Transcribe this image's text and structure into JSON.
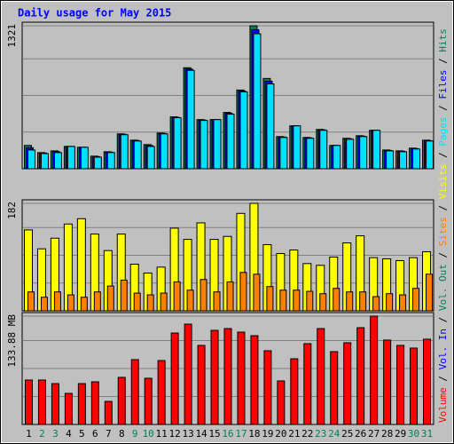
{
  "chart_data": [
    {
      "type": "bar",
      "title": "Daily usage for May 2015",
      "ylim": [
        0,
        1321
      ],
      "yticks": [
        1321
      ],
      "series": [
        {
          "name": "Hits",
          "color": "#00805c",
          "values": [
            215,
            149,
            165,
            206,
            198,
            116,
            157,
            322,
            264,
            223,
            330,
            479,
            933,
            454,
            454,
            520,
            727,
            1321,
            834,
            297,
            396,
            289,
            363,
            215,
            281,
            305,
            355,
            173,
            165,
            190,
            264
          ]
        },
        {
          "name": "Files",
          "color": "#0000ff",
          "values": [
            194,
            145,
            157,
            206,
            198,
            112,
            153,
            318,
            260,
            215,
            326,
            475,
            921,
            450,
            454,
            512,
            719,
            1284,
            809,
            293,
            396,
            285,
            359,
            215,
            277,
            301,
            355,
            169,
            161,
            186,
            260
          ]
        },
        {
          "name": "Pages",
          "color": "#00e0ff",
          "values": [
            173,
            140,
            149,
            206,
            198,
            107,
            149,
            314,
            256,
            206,
            322,
            471,
            909,
            446,
            454,
            504,
            710,
            1247,
            784,
            289,
            396,
            281,
            355,
            215,
            272,
            297,
            355,
            165,
            157,
            182,
            256
          ]
        }
      ]
    },
    {
      "type": "bar",
      "ylim": [
        0,
        182
      ],
      "yticks": [
        182
      ],
      "series": [
        {
          "name": "Visits",
          "color": "#ffff00",
          "values": [
            137,
            105,
            123,
            147,
            156,
            130,
            102,
            130,
            79,
            64,
            74,
            140,
            121,
            149,
            121,
            126,
            165,
            182,
            112,
            97,
            103,
            80,
            77,
            91,
            115,
            127,
            90,
            88,
            85,
            90,
            100
          ]
        },
        {
          "name": "Sites",
          "color": "#ff8000",
          "values": [
            32,
            23,
            32,
            27,
            23,
            32,
            42,
            52,
            30,
            27,
            30,
            49,
            35,
            53,
            32,
            49,
            65,
            62,
            41,
            35,
            35,
            33,
            29,
            38,
            32,
            32,
            24,
            29,
            27,
            38,
            62
          ]
        }
      ]
    },
    {
      "type": "bar",
      "ylim": [
        0,
        133.88
      ],
      "yticks": [
        {
          "value": 133.88,
          "label": "133.88 MB"
        }
      ],
      "categories": [
        "1",
        "2",
        "3",
        "4",
        "5",
        "6",
        "7",
        "8",
        "9",
        "10",
        "11",
        "12",
        "13",
        "14",
        "15",
        "16",
        "17",
        "18",
        "19",
        "20",
        "21",
        "22",
        "23",
        "24",
        "25",
        "26",
        "27",
        "28",
        "29",
        "30",
        "31"
      ],
      "category_colors": [
        "#000000",
        "#00805c",
        "#00805c",
        "#000000",
        "#000000",
        "#000000",
        "#000000",
        "#000000",
        "#00805c",
        "#00805c",
        "#000000",
        "#000000",
        "#000000",
        "#000000",
        "#000000",
        "#00805c",
        "#00805c",
        "#000000",
        "#000000",
        "#000000",
        "#000000",
        "#000000",
        "#00805c",
        "#00805c",
        "#000000",
        "#000000",
        "#000000",
        "#000000",
        "#000000",
        "#00805c",
        "#00805c"
      ],
      "series": [
        {
          "name": "Volume",
          "color": "#ff0000",
          "values": [
            54.9,
            54.9,
            50.5,
            38.4,
            50.5,
            52.7,
            28.5,
            58.2,
            80.1,
            57.1,
            79.0,
            113.0,
            124.0,
            97.7,
            116.3,
            118.5,
            114.1,
            109.7,
            91.1,
            53.8,
            81.2,
            99.9,
            118.5,
            90.0,
            101.0,
            119.6,
            133.88,
            104.3,
            97.7,
            94.4,
            105.4
          ]
        },
        {
          "name": "Vol. In",
          "color": "#0000ff",
          "values": [
            null,
            null,
            null,
            null,
            null,
            null,
            null,
            null,
            null,
            null,
            null,
            null,
            null,
            null,
            null,
            null,
            null,
            null,
            null,
            null,
            null,
            null,
            null,
            null,
            null,
            null,
            null,
            null,
            null,
            null,
            null
          ]
        },
        {
          "name": "Vol. Out",
          "color": "#00805c",
          "values": [
            null,
            null,
            null,
            null,
            null,
            null,
            null,
            null,
            null,
            null,
            null,
            null,
            null,
            null,
            null,
            null,
            null,
            null,
            null,
            null,
            null,
            null,
            null,
            null,
            null,
            null,
            null,
            null,
            null,
            null,
            null
          ]
        }
      ]
    }
  ]
}
